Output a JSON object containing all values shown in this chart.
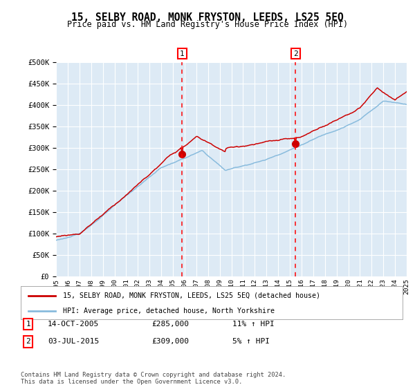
{
  "title": "15, SELBY ROAD, MONK FRYSTON, LEEDS, LS25 5EQ",
  "subtitle": "Price paid vs. HM Land Registry's House Price Index (HPI)",
  "legend_line1": "15, SELBY ROAD, MONK FRYSTON, LEEDS, LS25 5EQ (detached house)",
  "legend_line2": "HPI: Average price, detached house, North Yorkshire",
  "footnote": "Contains HM Land Registry data © Crown copyright and database right 2024.\nThis data is licensed under the Open Government Licence v3.0.",
  "sale1_label": "1",
  "sale1_date": "14-OCT-2005",
  "sale1_price": "£285,000",
  "sale1_hpi": "11% ↑ HPI",
  "sale2_label": "2",
  "sale2_date": "03-JUL-2015",
  "sale2_price": "£309,000",
  "sale2_hpi": "5% ↑ HPI",
  "ylim": [
    0,
    500000
  ],
  "yticks": [
    0,
    50000,
    100000,
    150000,
    200000,
    250000,
    300000,
    350000,
    400000,
    450000,
    500000
  ],
  "background_color": "#ffffff",
  "plot_bg_color": "#ddeaf5",
  "grid_color": "#ffffff",
  "red_color": "#cc0000",
  "blue_color": "#88bbdd",
  "sale1_year": 2005.79,
  "sale2_year": 2015.5,
  "start_year": 1995,
  "end_year": 2025
}
